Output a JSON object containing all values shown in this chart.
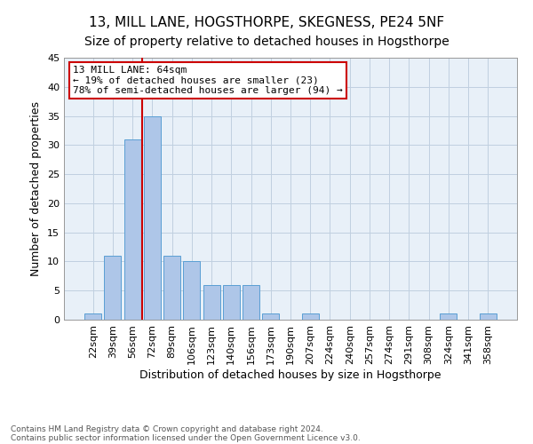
{
  "title": "13, MILL LANE, HOGSTHORPE, SKEGNESS, PE24 5NF",
  "subtitle": "Size of property relative to detached houses in Hogsthorpe",
  "xlabel": "Distribution of detached houses by size in Hogsthorpe",
  "ylabel": "Number of detached properties",
  "footnote1": "Contains HM Land Registry data © Crown copyright and database right 2024.",
  "footnote2": "Contains public sector information licensed under the Open Government Licence v3.0.",
  "bar_labels": [
    "22sqm",
    "39sqm",
    "56sqm",
    "72sqm",
    "89sqm",
    "106sqm",
    "123sqm",
    "140sqm",
    "156sqm",
    "173sqm",
    "190sqm",
    "207sqm",
    "224sqm",
    "240sqm",
    "257sqm",
    "274sqm",
    "291sqm",
    "308sqm",
    "324sqm",
    "341sqm",
    "358sqm"
  ],
  "bar_values": [
    1,
    11,
    31,
    35,
    11,
    10,
    6,
    6,
    6,
    1,
    0,
    1,
    0,
    0,
    0,
    0,
    0,
    0,
    1,
    0,
    1
  ],
  "bar_color": "#aec6e8",
  "bar_edge_color": "#5a9fd4",
  "vline_color": "#cc0000",
  "annotation_text": "13 MILL LANE: 64sqm\n← 19% of detached houses are smaller (23)\n78% of semi-detached houses are larger (94) →",
  "annotation_box_color": "#cc0000",
  "ylim": [
    0,
    45
  ],
  "yticks": [
    0,
    5,
    10,
    15,
    20,
    25,
    30,
    35,
    40,
    45
  ],
  "grid_color": "#c0d0e0",
  "bg_color": "#e8f0f8",
  "title_fontsize": 11,
  "subtitle_fontsize": 10,
  "xlabel_fontsize": 9,
  "ylabel_fontsize": 9,
  "tick_fontsize": 8,
  "footnote_fontsize": 6.5,
  "annotation_fontsize": 8
}
